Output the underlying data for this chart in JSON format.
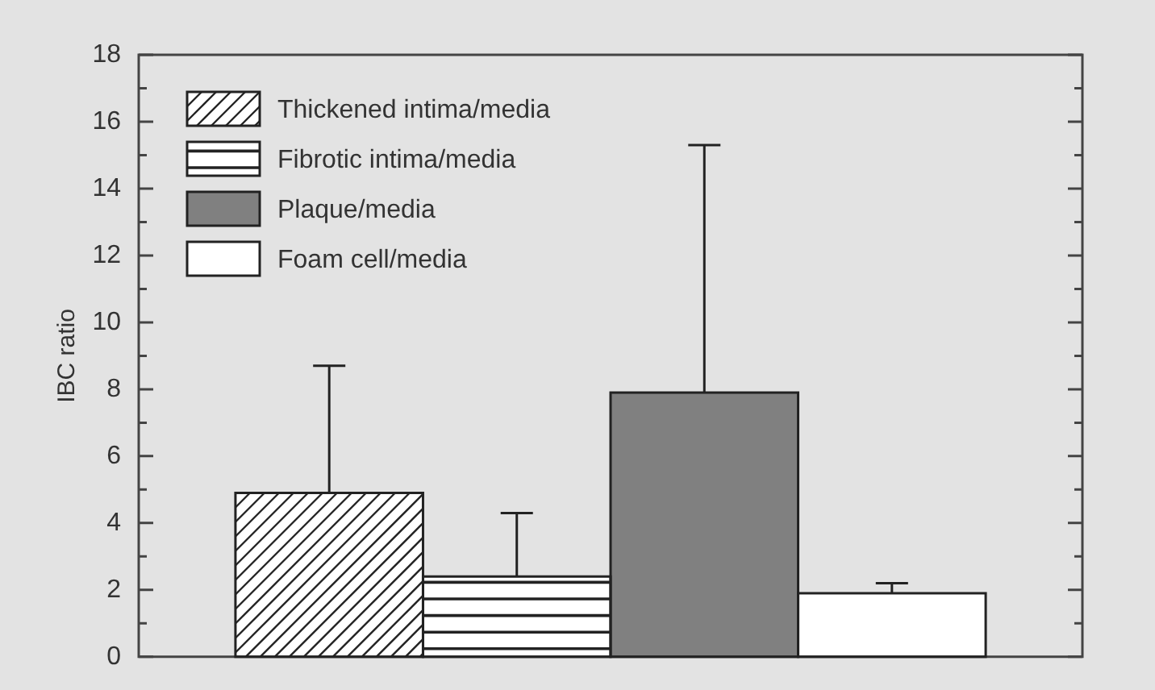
{
  "chart_data": {
    "type": "bar",
    "ylabel": "IBC ratio",
    "categories": [
      null
    ],
    "series": [
      {
        "name": "Thickened intima/media",
        "color": "#ffffff",
        "values": [
          4.9
        ],
        "errors": [
          [
            4.9,
            8.7
          ]
        ]
      },
      {
        "name": "Fibrotic intima/media",
        "color": "#ffffff",
        "values": [
          2.4
        ],
        "errors": [
          [
            2.4,
            4.3
          ]
        ]
      },
      {
        "name": "Plaque/media",
        "color": "#808080",
        "values": [
          7.9
        ],
        "errors": [
          [
            7.9,
            15.3
          ]
        ]
      },
      {
        "name": "Foam cell/media",
        "color": "#ffffff",
        "values": [
          1.9
        ],
        "errors": [
          [
            1.9,
            2.2
          ]
        ]
      }
    ],
    "ylim": [
      0,
      18
    ],
    "yticks": [
      0,
      {
        "value": 1,
        "label": null
      },
      2,
      {
        "value": 3,
        "label": null
      },
      4,
      {
        "value": 5,
        "label": null
      },
      6,
      {
        "value": 7,
        "label": null
      },
      8,
      {
        "value": 9,
        "label": null
      },
      10,
      {
        "value": 11,
        "label": null
      },
      12,
      {
        "value": 13,
        "label": null
      },
      14,
      {
        "value": 15,
        "label": null
      },
      16,
      {
        "value": 17,
        "label": null
      },
      18
    ],
    "legend": "top left"
  }
}
